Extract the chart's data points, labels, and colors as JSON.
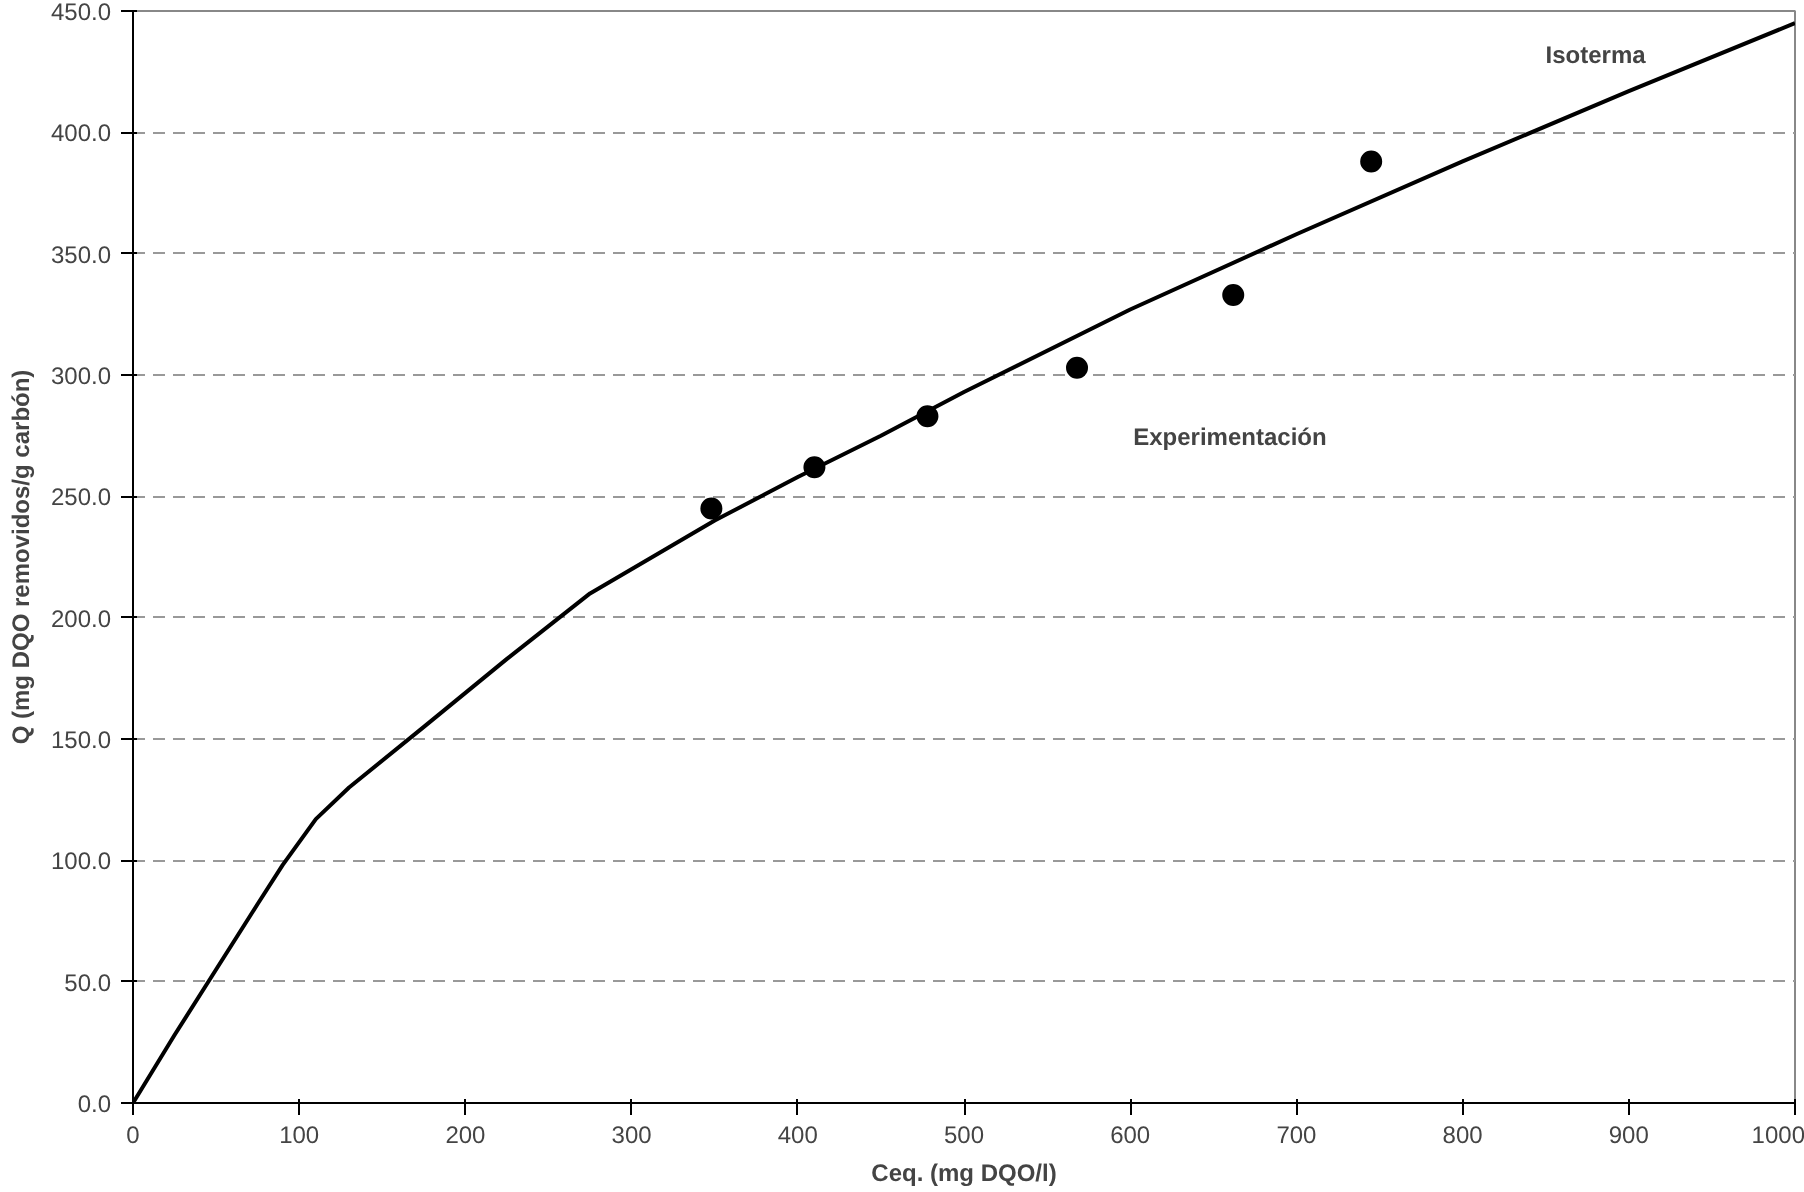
{
  "chart_data": {
    "type": "line",
    "xlabel": "Ceq. (mg DQO/l)",
    "ylabel": "Q (mg DQO removidos/g carbón)",
    "xlim": [
      0,
      1000
    ],
    "ylim": [
      0,
      450
    ],
    "xticks": [
      0,
      100,
      200,
      300,
      400,
      500,
      600,
      700,
      800,
      900,
      1000
    ],
    "yticks": [
      {
        "value": 0,
        "label": "0.0"
      },
      {
        "value": 50,
        "label": "50.0"
      },
      {
        "value": 100,
        "label": "100.0"
      },
      {
        "value": 150,
        "label": "150.0"
      },
      {
        "value": 200,
        "label": "200.0"
      },
      {
        "value": 250,
        "label": "250.0"
      },
      {
        "value": 300,
        "label": "300.0"
      },
      {
        "value": 350,
        "label": "350.0"
      },
      {
        "value": 400,
        "label": "400.0"
      },
      {
        "value": 450,
        "label": "450.0"
      }
    ],
    "grid": "y",
    "line_style": "solid",
    "series": [
      {
        "color": "#000000",
        "x": [
          0,
          25,
          50,
          75,
          90,
          110,
          130,
          175,
          225,
          275,
          350,
          400,
          450,
          500,
          600,
          700,
          800,
          900,
          1000
        ],
        "values": [
          0,
          28,
          55,
          82,
          98,
          117,
          130,
          155,
          183,
          210,
          240,
          258,
          275,
          293,
          327,
          358,
          388,
          417,
          445
        ]
      },
      {
        "type": "scatter",
        "color": "#000000",
        "marker": "circle",
        "x": [
          348,
          410,
          478,
          568,
          662,
          745
        ],
        "values": [
          245,
          262,
          283,
          303,
          333,
          388
        ]
      }
    ],
    "annotations": [
      "Isoterma",
      "Experimentación"
    ]
  }
}
